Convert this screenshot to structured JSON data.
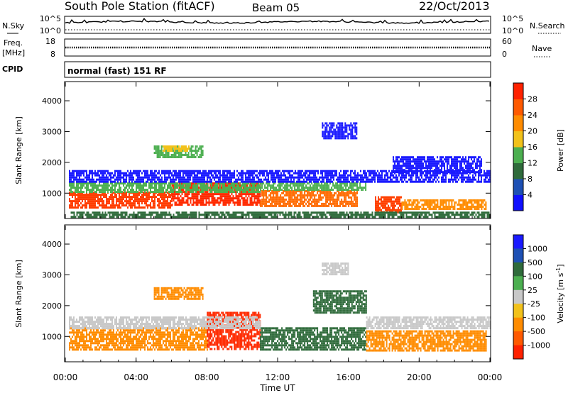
{
  "header": {
    "station": "South Pole Station (fitACF)",
    "beam": "Beam 05",
    "date": "22/Oct/2013"
  },
  "sky_panel": {
    "left_label": "N.Sky",
    "right_label": "N.Search",
    "ticks_left": [
      "10^5",
      "10^0"
    ],
    "ticks_right": [
      "10^5",
      "10^0"
    ]
  },
  "freq_panel": {
    "left_label_line1": "Freq.",
    "left_label_line2": "[MHz]",
    "right_label": "Nave",
    "ticks_left": [
      "18",
      "8"
    ],
    "ticks_right": [
      "60",
      "0"
    ]
  },
  "cpid_panel": {
    "label": "CPID",
    "text": "normal (fast) 151 RF"
  },
  "x_axis": {
    "label": "Time UT",
    "ticks": [
      "00:00",
      "04:00",
      "08:00",
      "12:00",
      "16:00",
      "20:00",
      "00:00"
    ]
  },
  "colors": {
    "blue": "#1a1aff",
    "dark_green": "#2f6b3b",
    "green": "#4caf50",
    "light_green": "#8ecf3c",
    "yellow": "#f2c21b",
    "orange": "#ff8c00",
    "red": "#ff2200",
    "grey": "#c8c8c8"
  },
  "chart_data": [
    {
      "type": "heatmap",
      "name": "power",
      "ylabel": "Slant Range [km]",
      "yticks": [
        "1000",
        "2000",
        "3000",
        "4000"
      ],
      "ylim": [
        200,
        4600
      ],
      "xlim_hours": [
        0,
        24
      ],
      "colorbar": {
        "label": "Power [dB]",
        "ticks": [
          "4",
          "8",
          "12",
          "16",
          "20",
          "24",
          "28"
        ],
        "colors": [
          "#1010ff",
          "#1e50b4",
          "#2f6b3b",
          "#4caf50",
          "#f2c21b",
          "#ff8c00",
          "#ff5a00",
          "#ff2200"
        ]
      },
      "bands": [
        {
          "t0": 0.2,
          "t1": 6.0,
          "r0": 550,
          "r1": 1050,
          "color": "#ff3c00"
        },
        {
          "t0": 6.0,
          "t1": 11.0,
          "r0": 600,
          "r1": 1350,
          "color": "#ff2a00"
        },
        {
          "t0": 11.0,
          "t1": 16.5,
          "r0": 550,
          "r1": 1100,
          "color": "#ff6a00"
        },
        {
          "t0": 17.5,
          "t1": 19.0,
          "r0": 400,
          "r1": 900,
          "color": "#ff4000"
        },
        {
          "t0": 19.0,
          "t1": 23.8,
          "r0": 500,
          "r1": 800,
          "color": "#ff8c00"
        },
        {
          "t0": 0.2,
          "t1": 11.0,
          "r0": 1050,
          "r1": 1350,
          "color": "#4caf50"
        },
        {
          "t0": 11.0,
          "t1": 17.0,
          "r0": 1100,
          "r1": 1350,
          "color": "#4caf50"
        },
        {
          "t0": 0.2,
          "t1": 24.0,
          "r0": 1350,
          "r1": 1750,
          "color": "#1a1aff"
        },
        {
          "t0": 5.0,
          "t1": 7.8,
          "r0": 2200,
          "r1": 2550,
          "color": "#4caf50"
        },
        {
          "t0": 5.5,
          "t1": 7.0,
          "r0": 2350,
          "r1": 2550,
          "color": "#f2c21b"
        },
        {
          "t0": 0.3,
          "t1": 24.0,
          "r0": 200,
          "r1": 400,
          "color": "#2f6b3b"
        },
        {
          "t0": 14.5,
          "t1": 16.5,
          "r0": 2800,
          "r1": 3300,
          "color": "#1a1aff"
        },
        {
          "t0": 18.5,
          "t1": 23.5,
          "r0": 1700,
          "r1": 2200,
          "color": "#1a1aff"
        }
      ]
    },
    {
      "type": "heatmap",
      "name": "velocity",
      "ylabel": "Slant Range [km]",
      "yticks": [
        "1000",
        "2000",
        "3000",
        "4000"
      ],
      "ylim": [
        200,
        4600
      ],
      "xlim_hours": [
        0,
        24
      ],
      "colorbar": {
        "label": "Velocity [m s^-1]",
        "ticks": [
          "1000",
          "500",
          "100",
          "25",
          "-25",
          "-100",
          "-500",
          "-1000"
        ],
        "colors": [
          "#1a1aff",
          "#1e50b4",
          "#2f6b3b",
          "#4caf50",
          "#c8c8c8",
          "#f2c21b",
          "#ff8c00",
          "#ff5a00",
          "#ff2200"
        ]
      },
      "bands": [
        {
          "t0": 0.2,
          "t1": 8.0,
          "r0": 550,
          "r1": 1300,
          "color": "#ff8c00"
        },
        {
          "t0": 8.0,
          "t1": 11.0,
          "r0": 600,
          "r1": 1800,
          "color": "#ff2a00"
        },
        {
          "t0": 11.0,
          "t1": 17.0,
          "r0": 550,
          "r1": 1300,
          "color": "#2f6b3b"
        },
        {
          "t0": 17.0,
          "t1": 23.8,
          "r0": 550,
          "r1": 1200,
          "color": "#ff8c00"
        },
        {
          "t0": 0.2,
          "t1": 11.0,
          "r0": 1300,
          "r1": 1650,
          "color": "#c8c8c8"
        },
        {
          "t0": 17.0,
          "t1": 24.0,
          "r0": 1300,
          "r1": 1650,
          "color": "#c8c8c8"
        },
        {
          "t0": 5.0,
          "t1": 7.8,
          "r0": 2200,
          "r1": 2600,
          "color": "#ff8c00"
        },
        {
          "t0": 14.0,
          "t1": 17.0,
          "r0": 1800,
          "r1": 2500,
          "color": "#2f6b3b"
        },
        {
          "t0": 14.5,
          "t1": 16.0,
          "r0": 3000,
          "r1": 3400,
          "color": "#c8c8c8"
        }
      ]
    }
  ]
}
